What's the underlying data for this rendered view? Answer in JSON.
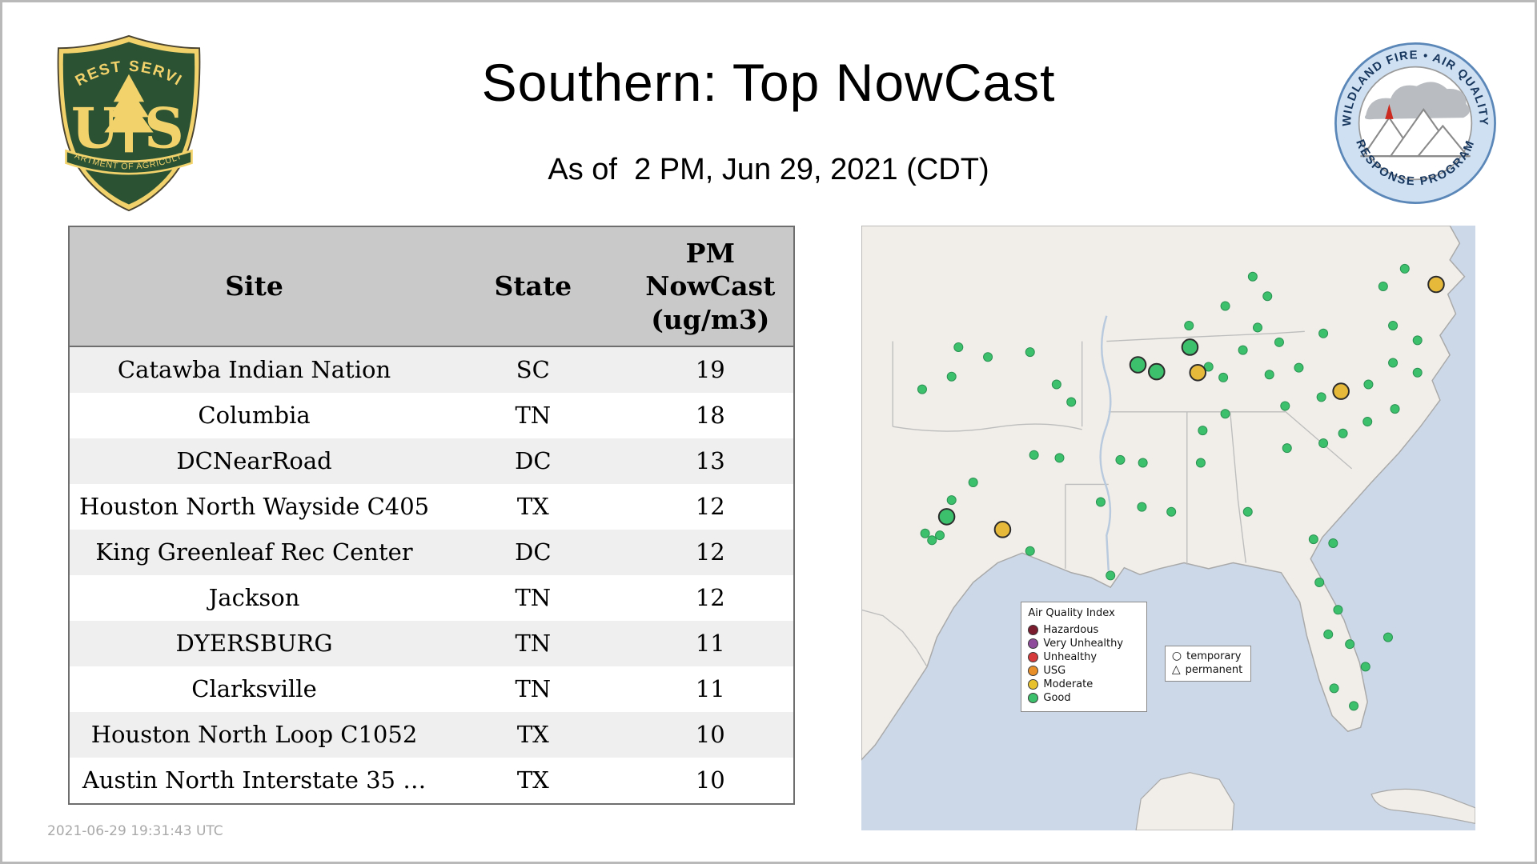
{
  "header": {
    "title": "Southern: Top NowCast",
    "subtitle": "As of  2 PM, Jun 29, 2021 (CDT)",
    "usfs_logo": {
      "arc_text": "FOREST SERVICE",
      "letters_left": "U",
      "letters_right": "S",
      "banner_text": "DEPARTMENT OF AGRICULTURE"
    },
    "wfaqrp_logo": {
      "top_text": "WILDLAND FIRE • AIR QUALITY",
      "bottom_text": "RESPONSE PROGRAM"
    }
  },
  "table": {
    "columns": [
      "Site",
      "State",
      "PM NowCast (ug/m3)"
    ],
    "rows": [
      [
        "Catawba Indian Nation",
        "SC",
        "19"
      ],
      [
        "Columbia",
        "TN",
        "18"
      ],
      [
        "DCNearRoad",
        "DC",
        "13"
      ],
      [
        "Houston North Wayside C405",
        "TX",
        "12"
      ],
      [
        "King Greenleaf Rec Center",
        "DC",
        "12"
      ],
      [
        "Jackson",
        "TN",
        "12"
      ],
      [
        "DYERSBURG",
        "TN",
        "11"
      ],
      [
        "Clarksville",
        "TN",
        "11"
      ],
      [
        "Houston North Loop C1052",
        "TX",
        "10"
      ],
      [
        "Austin North Interstate 35 …",
        "TX",
        "10"
      ]
    ]
  },
  "footer": {
    "timestamp": "2021-06-29 19:31:43 UTC"
  },
  "map": {
    "colors": {
      "water": "#ccd8e8",
      "land": "#f1eee9",
      "good": "#3dc06c",
      "moderate": "#e6b93a",
      "marker_outline": "#2b2b2b"
    },
    "legend": {
      "title": "Air Quality Index",
      "items": [
        {
          "label": "Hazardous",
          "color": "#7a1b2e"
        },
        {
          "label": "Very Unhealthy",
          "color": "#8f4b9b"
        },
        {
          "label": "Unhealthy",
          "color": "#d63a3a"
        },
        {
          "label": "USG",
          "color": "#e88f2a"
        },
        {
          "label": "Moderate",
          "color": "#e8c22e"
        },
        {
          "label": "Good",
          "color": "#3dc06c"
        }
      ]
    },
    "symbol_legend": {
      "temporary": "temporary",
      "permanent": "permanent"
    },
    "markers": {
      "good_small": [
        [
          399,
          52
        ],
        [
          554,
          44
        ],
        [
          532,
          62
        ],
        [
          414,
          72
        ],
        [
          371,
          82
        ],
        [
          334,
          102
        ],
        [
          404,
          104
        ],
        [
          426,
          119
        ],
        [
          471,
          110
        ],
        [
          542,
          102
        ],
        [
          567,
          117
        ],
        [
          99,
          124
        ],
        [
          129,
          134
        ],
        [
          172,
          129
        ],
        [
          389,
          127
        ],
        [
          354,
          144
        ],
        [
          369,
          155
        ],
        [
          416,
          152
        ],
        [
          446,
          145
        ],
        [
          542,
          140
        ],
        [
          567,
          150
        ],
        [
          517,
          162
        ],
        [
          469,
          175
        ],
        [
          432,
          184
        ],
        [
          371,
          192
        ],
        [
          348,
          209
        ],
        [
          214,
          180
        ],
        [
          199,
          162
        ],
        [
          62,
          167
        ],
        [
          92,
          154
        ],
        [
          176,
          234
        ],
        [
          202,
          237
        ],
        [
          264,
          239
        ],
        [
          287,
          242
        ],
        [
          346,
          242
        ],
        [
          434,
          227
        ],
        [
          471,
          222
        ],
        [
          491,
          212
        ],
        [
          516,
          200
        ],
        [
          544,
          187
        ],
        [
          114,
          262
        ],
        [
          92,
          280
        ],
        [
          244,
          282
        ],
        [
          286,
          287
        ],
        [
          316,
          292
        ],
        [
          394,
          292
        ],
        [
          461,
          320
        ],
        [
          481,
          324
        ],
        [
          65,
          314
        ],
        [
          72,
          321
        ],
        [
          80,
          316
        ],
        [
          172,
          332
        ],
        [
          254,
          357
        ],
        [
          467,
          364
        ],
        [
          486,
          392
        ],
        [
          476,
          417
        ],
        [
          498,
          427
        ],
        [
          514,
          450
        ],
        [
          482,
          472
        ],
        [
          502,
          490
        ],
        [
          537,
          420
        ]
      ],
      "good_large": [
        [
          335,
          124
        ],
        [
          282,
          142
        ],
        [
          301,
          149
        ],
        [
          87,
          297
        ]
      ],
      "moderate_large": [
        [
          343,
          150
        ],
        [
          489,
          169
        ],
        [
          586,
          60
        ],
        [
          144,
          310
        ]
      ]
    }
  }
}
